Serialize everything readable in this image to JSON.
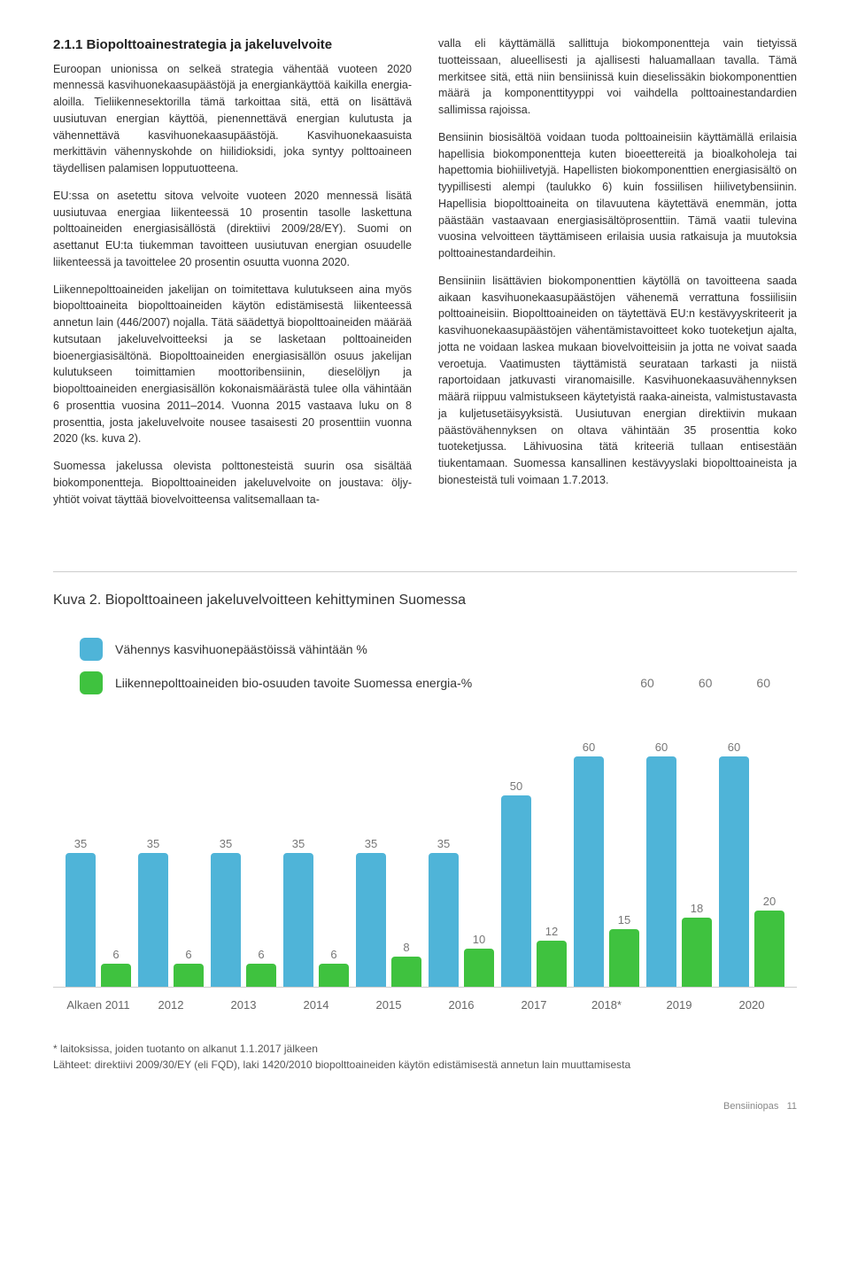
{
  "section": {
    "heading": "2.1.1 Biopolttoainestrategia ja jakeluvelvoite",
    "left_paragraphs": [
      "Euroopan unionissa on selkeä strategia vähentää vuoteen 2020 mennessä kasvihuonekaasupäästöjä ja energiankäyttöä kaikilla energia-aloilla. Tieliikennesektorilla tämä tarkoittaa sitä, että on lisättävä uusiutuvan energian käyttöä, pienennettävä energian kulutusta ja vähennettävä kasvihuonekaasupäästöjä. Kasvihuonekaasuista merkittävin vähennyskohde on hiilidioksidi, joka syntyy polttoaineen täydellisen palamisen lopputuotteena.",
      "EU:ssa on asetettu sitova velvoite vuoteen 2020 mennessä lisätä uusiutuvaa energiaa liikenteessä 10 prosentin tasolle laskettuna polttoaineiden energiasisällöstä (direktiivi 2009/28/EY). Suomi on asettanut EU:ta tiukemman tavoitteen uusiutuvan energian osuudelle liikenteessä ja tavoittelee 20 prosentin osuutta vuonna 2020.",
      "Liikennepolttoaineiden jakelijan on toimitettava kulutukseen aina myös biopolttoaineita biopolttoaineiden käytön edistämisestä liikenteessä annetun lain (446/2007) nojalla. Tätä säädettyä biopolttoaineiden määrää kutsutaan jakeluvelvoitteeksi ja se lasketaan polttoaineiden bioenergiasisältönä. Biopolttoaineiden energiasisällön osuus jakelijan kulutukseen toimittamien moottoribensiinin, dieselöljyn ja biopolttoaineiden energiasisällön kokonaismäärästä tulee olla vähintään 6 prosenttia vuosina 2011–2014. Vuonna 2015 vastaava luku on 8 prosenttia, josta jakeluvelvoite nousee tasaisesti 20 prosenttiin vuonna 2020 (ks. kuva 2).",
      "Suomessa jakelussa olevista polttonesteistä suurin osa sisältää biokomponentteja. Biopolttoaineiden jakeluvelvoite on joustava: öljy-yhtiöt voivat täyttää biovelvoitteensa valitsemallaan ta-"
    ],
    "right_paragraphs": [
      "valla eli käyttämällä sallittuja biokomponentteja vain tietyissä tuotteissaan, alueellisesti ja ajallisesti haluamallaan tavalla. Tämä merkitsee sitä, että niin bensiinissä kuin dieselissäkin biokomponenttien määrä ja komponenttityyppi voi vaihdella polttoainestandardien sallimissa rajoissa.",
      "Bensiinin biosisältöä voidaan tuoda polttoaineisiin käyttämällä erilaisia hapellisia biokomponentteja kuten bioeettereitä ja bioalkoholeja tai hapettomia biohiilivetyjä. Hapellisten biokomponenttien energiasisältö on tyypillisesti alempi (taulukko 6) kuin fossiilisen hiilivetybensiinin. Hapellisia biopolttoaineita on tilavuutena käytettävä enemmän, jotta päästään vastaavaan energiasisältöprosenttiin. Tämä vaatii tulevina vuosina velvoitteen täyttämiseen erilaisia uusia ratkaisuja ja muutoksia polttoainestandardeihin.",
      "Bensiiniin lisättävien biokomponenttien käytöllä on tavoitteena saada aikaan kasvihuonekaasupäästöjen vähenemä verrattuna fossiilisiin polttoaineisiin. Biopolttoaineiden on täytettävä EU:n kestävyyskriteerit ja kasvihuonekaasupäästöjen vähentämistavoitteet koko tuoteketjun ajalta, jotta ne voidaan laskea mukaan biovelvoitteisiin ja jotta ne voivat saada veroetuja. Vaatimusten täyttämistä seurataan tarkasti ja niistä raportoidaan jatkuvasti viranomaisille. Kasvihuonekaasuvähennyksen määrä riippuu valmistukseen käytetyistä raaka-aineista, valmistustavasta ja kuljetusetäisyyksistä. Uusiutuvan energian direktiivin mukaan päästövähennyksen on oltava vähintään 35 prosenttia koko tuoteketjussa. Lähivuosina tätä kriteeriä tullaan entisestään tiukentamaan. Suomessa kansallinen kestävyyslaki biopolttoaineista ja bionesteistä tuli voimaan 1.7.2013."
    ]
  },
  "chart": {
    "title": "Kuva 2. Biopolttoaineen jakeluvelvoitteen kehittyminen Suomessa",
    "legend": [
      {
        "label": "Vähennys kasvihuonepäästöissä vähintään %",
        "color": "#4fb4d8"
      },
      {
        "label": "Liikennepolttoaineiden bio-osuuden tavoite Suomessa energia-%",
        "color": "#3fc23f"
      }
    ],
    "colors": {
      "blue": "#4fb4d8",
      "green": "#3fc23f",
      "axis": "#cccccc",
      "label": "#777777"
    },
    "max_value": 60,
    "categories": [
      "Alkaen 2011",
      "2012",
      "2013",
      "2014",
      "2015",
      "2016",
      "2017",
      "2018*",
      "2019",
      "2020"
    ],
    "series_blue": [
      35,
      35,
      35,
      35,
      35,
      35,
      50,
      60,
      60,
      60
    ],
    "series_green": [
      6,
      6,
      6,
      6,
      8,
      10,
      12,
      15,
      18,
      20
    ],
    "top_right_labels": [
      "60",
      "60",
      "60"
    ],
    "footnote1": "* laitoksissa, joiden tuotanto on alkanut 1.1.2017 jälkeen",
    "footnote2": "Lähteet: direktiivi 2009/30/EY (eli FQD), laki 1420/2010 biopolttoaineiden käytön edistämisestä annetun lain muuttamisesta"
  },
  "footer": {
    "text": "Bensiiniopas",
    "page": "11"
  }
}
